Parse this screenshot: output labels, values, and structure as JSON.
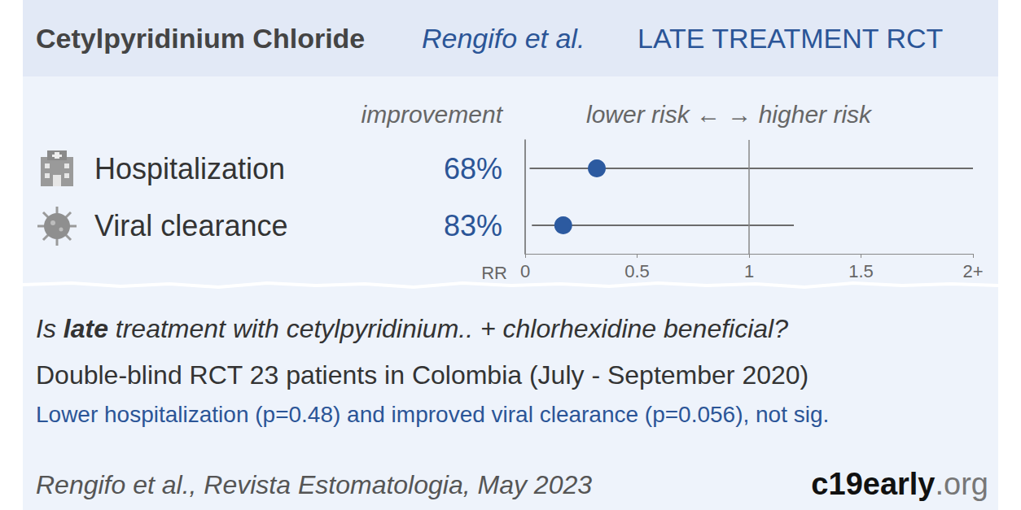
{
  "header": {
    "title": "Cetylpyridinium Chloride",
    "study": "Rengifo et al.",
    "label": "LATE TREATMENT RCT"
  },
  "chart_data": {
    "type": "scatter",
    "marker": "circle",
    "color": "#2c5aa0",
    "columns": [
      "improvement",
      "lower risk ← → higher risk"
    ],
    "categories": [
      "Hospitalization",
      "Viral clearance"
    ],
    "improvement": [
      "68%",
      "83%"
    ],
    "values": [
      0.32,
      0.17
    ],
    "ci_low": [
      0.02,
      0.03
    ],
    "ci_high": [
      2,
      1.2
    ],
    "reference_line": 1,
    "xlabel": "RR",
    "xlim": [
      0,
      2
    ],
    "xticks": [
      0,
      0.5,
      1,
      1.5,
      {
        "value": 2,
        "label": "2+"
      }
    ],
    "grid": false
  },
  "summary": {
    "question": [
      {
        "text": "Is "
      },
      {
        "text": "late",
        "bold": true
      },
      {
        "text": " treatment with cetylpyridinium.. + chlorhexidine beneficial?"
      }
    ],
    "design": "Double-blind RCT 23 patients in Colombia (July - September 2020)",
    "result": "Lower hospitalization (p=0.48) and improved viral clearance (p=0.056), not sig."
  },
  "footer": {
    "citation": "Rengifo et al., Revista Estomatologia, May 2023",
    "brand": [
      {
        "text": "c19early",
        "bold": true
      },
      {
        "text": ".org"
      }
    ]
  }
}
